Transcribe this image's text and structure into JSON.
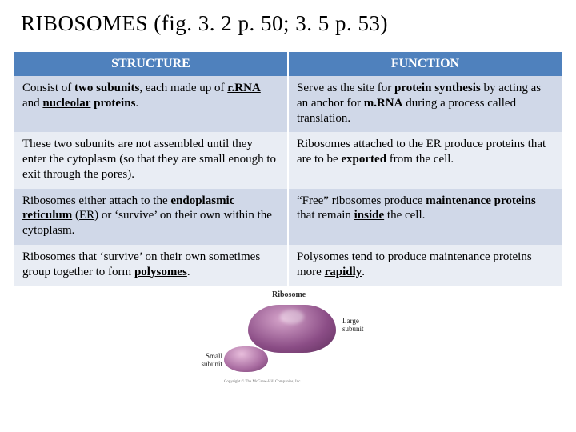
{
  "title": "RIBOSOMES (fig. 3. 2 p. 50; 3. 5 p. 53)",
  "table": {
    "header_bg": "#4f81bd",
    "row_colors": [
      "#d0d8e8",
      "#e9edf4"
    ],
    "columns": [
      "STRUCTURE",
      "FUNCTION"
    ],
    "rows": [
      {
        "structure_html": "Consist of <span class='b'>two subunits</span>, each made up of <span class='b u'>r.RNA</span> and <span class='b u'>nucleolar</span> <span class='b'>proteins</span>.",
        "function_html": "Serve as the site for <span class='b'>protein synthesis</span> by acting as an anchor for <span class='b'>m.RNA</span> during a process called translation."
      },
      {
        "structure_html": "These two subunits are not assembled until they enter the cytoplasm (so that they are small enough to exit through the pores).",
        "function_html": "Ribosomes attached to the ER produce proteins that are to be <span class='b'>exported</span> from the cell."
      },
      {
        "structure_html": "Ribosomes either attach to the <span class='b'>endoplasmic</span> <span class='b u'>reticulum</span> (<span class='u'>ER</span>) or ‘survive’ on their own within the cytoplasm.",
        "function_html": "“Free” ribosomes produce <span class='b'>maintenance proteins</span> that remain <span class='b u'>inside</span> the cell."
      },
      {
        "structure_html": "Ribosomes that ‘survive’ on their own sometimes group together to form <span class='b u'>polysomes</span>.",
        "function_html": "Polysomes tend to produce maintenance proteins more <span class='b u'>rapidly</span>."
      }
    ]
  },
  "diagram": {
    "title": "Ribosome",
    "large_label": "Large\nsubunit",
    "small_label": "Small\nsubunit",
    "large_color": "#8b4d86",
    "small_color": "#a86ba0",
    "credit": "Copyright © The McGraw-Hill Companies, Inc."
  }
}
